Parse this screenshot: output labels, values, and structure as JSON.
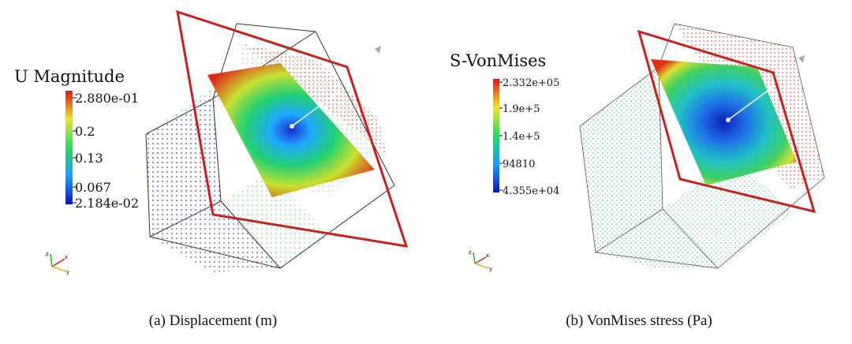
{
  "panels": [
    {
      "id": "a",
      "caption": "(a) Displacement (m)",
      "legend": {
        "title": "U Magnitude",
        "ticks": [
          "2.880e-01",
          "0.2",
          "0.13",
          "0.067",
          "2.184e-02"
        ]
      },
      "axes": {
        "x": "x",
        "y": "y",
        "z": "z"
      }
    },
    {
      "id": "b",
      "caption": "(b) VonMises stress (Pa)",
      "legend": {
        "title": "S-VonMises",
        "ticks": [
          "2.332e+05",
          "1.9e+5",
          "1.4e+5",
          "94810",
          "4.355e+04"
        ]
      },
      "axes": {
        "x": "x",
        "y": "y",
        "z": "z"
      }
    }
  ],
  "colors": {
    "plane_outline": "#c8201e",
    "box_outline": "#333333",
    "colormap": [
      "#0a14c8",
      "#14a0ff",
      "#1ee05a",
      "#f0e628",
      "#e01414"
    ]
  }
}
